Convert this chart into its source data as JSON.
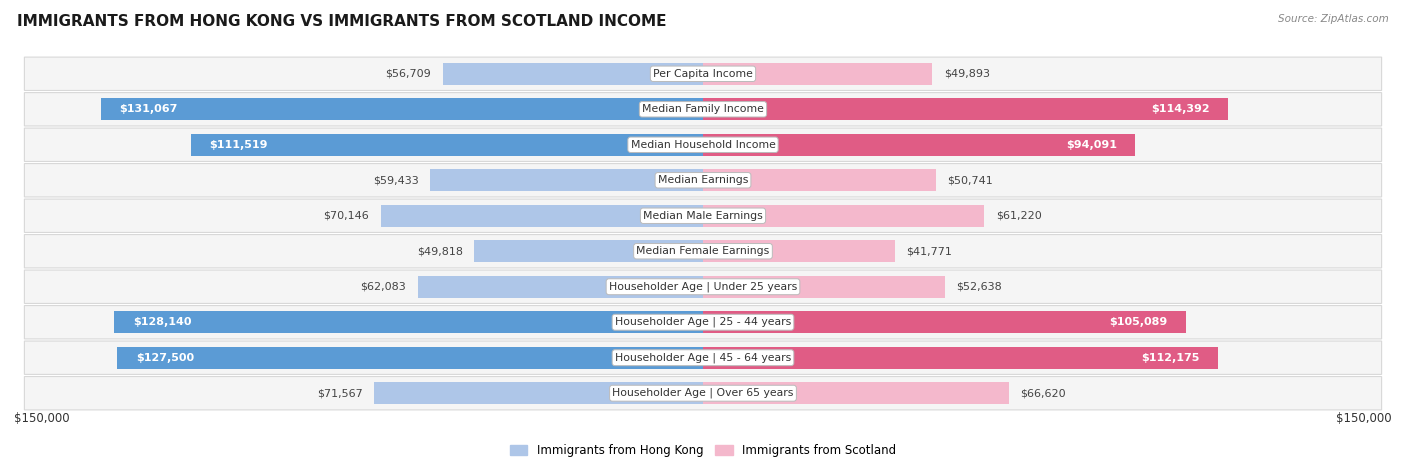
{
  "title": "IMMIGRANTS FROM HONG KONG VS IMMIGRANTS FROM SCOTLAND INCOME",
  "source": "Source: ZipAtlas.com",
  "categories": [
    "Per Capita Income",
    "Median Family Income",
    "Median Household Income",
    "Median Earnings",
    "Median Male Earnings",
    "Median Female Earnings",
    "Householder Age | Under 25 years",
    "Householder Age | 25 - 44 years",
    "Householder Age | 45 - 64 years",
    "Householder Age | Over 65 years"
  ],
  "hk_values": [
    56709,
    131067,
    111519,
    59433,
    70146,
    49818,
    62083,
    128140,
    127500,
    71567
  ],
  "scot_values": [
    49893,
    114392,
    94091,
    50741,
    61220,
    41771,
    52638,
    105089,
    112175,
    66620
  ],
  "hk_labels": [
    "$56,709",
    "$131,067",
    "$111,519",
    "$59,433",
    "$70,146",
    "$49,818",
    "$62,083",
    "$128,140",
    "$127,500",
    "$71,567"
  ],
  "scot_labels": [
    "$49,893",
    "$114,392",
    "$94,091",
    "$50,741",
    "$61,220",
    "$41,771",
    "$52,638",
    "$105,089",
    "$112,175",
    "$66,620"
  ],
  "max_value": 150000,
  "hk_color_light": "#aec6e8",
  "hk_color_dark": "#5b9bd5",
  "scot_color_light": "#f4b8cc",
  "scot_color_dark": "#e05c85",
  "hk_label_inside": [
    false,
    true,
    true,
    false,
    false,
    false,
    false,
    true,
    true,
    false
  ],
  "scot_label_inside": [
    false,
    true,
    true,
    false,
    false,
    false,
    false,
    true,
    true,
    false
  ],
  "row_bg": "#f5f5f5",
  "row_border": "#d8d8d8",
  "legend_hk": "Immigrants from Hong Kong",
  "legend_scot": "Immigrants from Scotland",
  "xlabel_left": "$150,000",
  "xlabel_right": "$150,000"
}
